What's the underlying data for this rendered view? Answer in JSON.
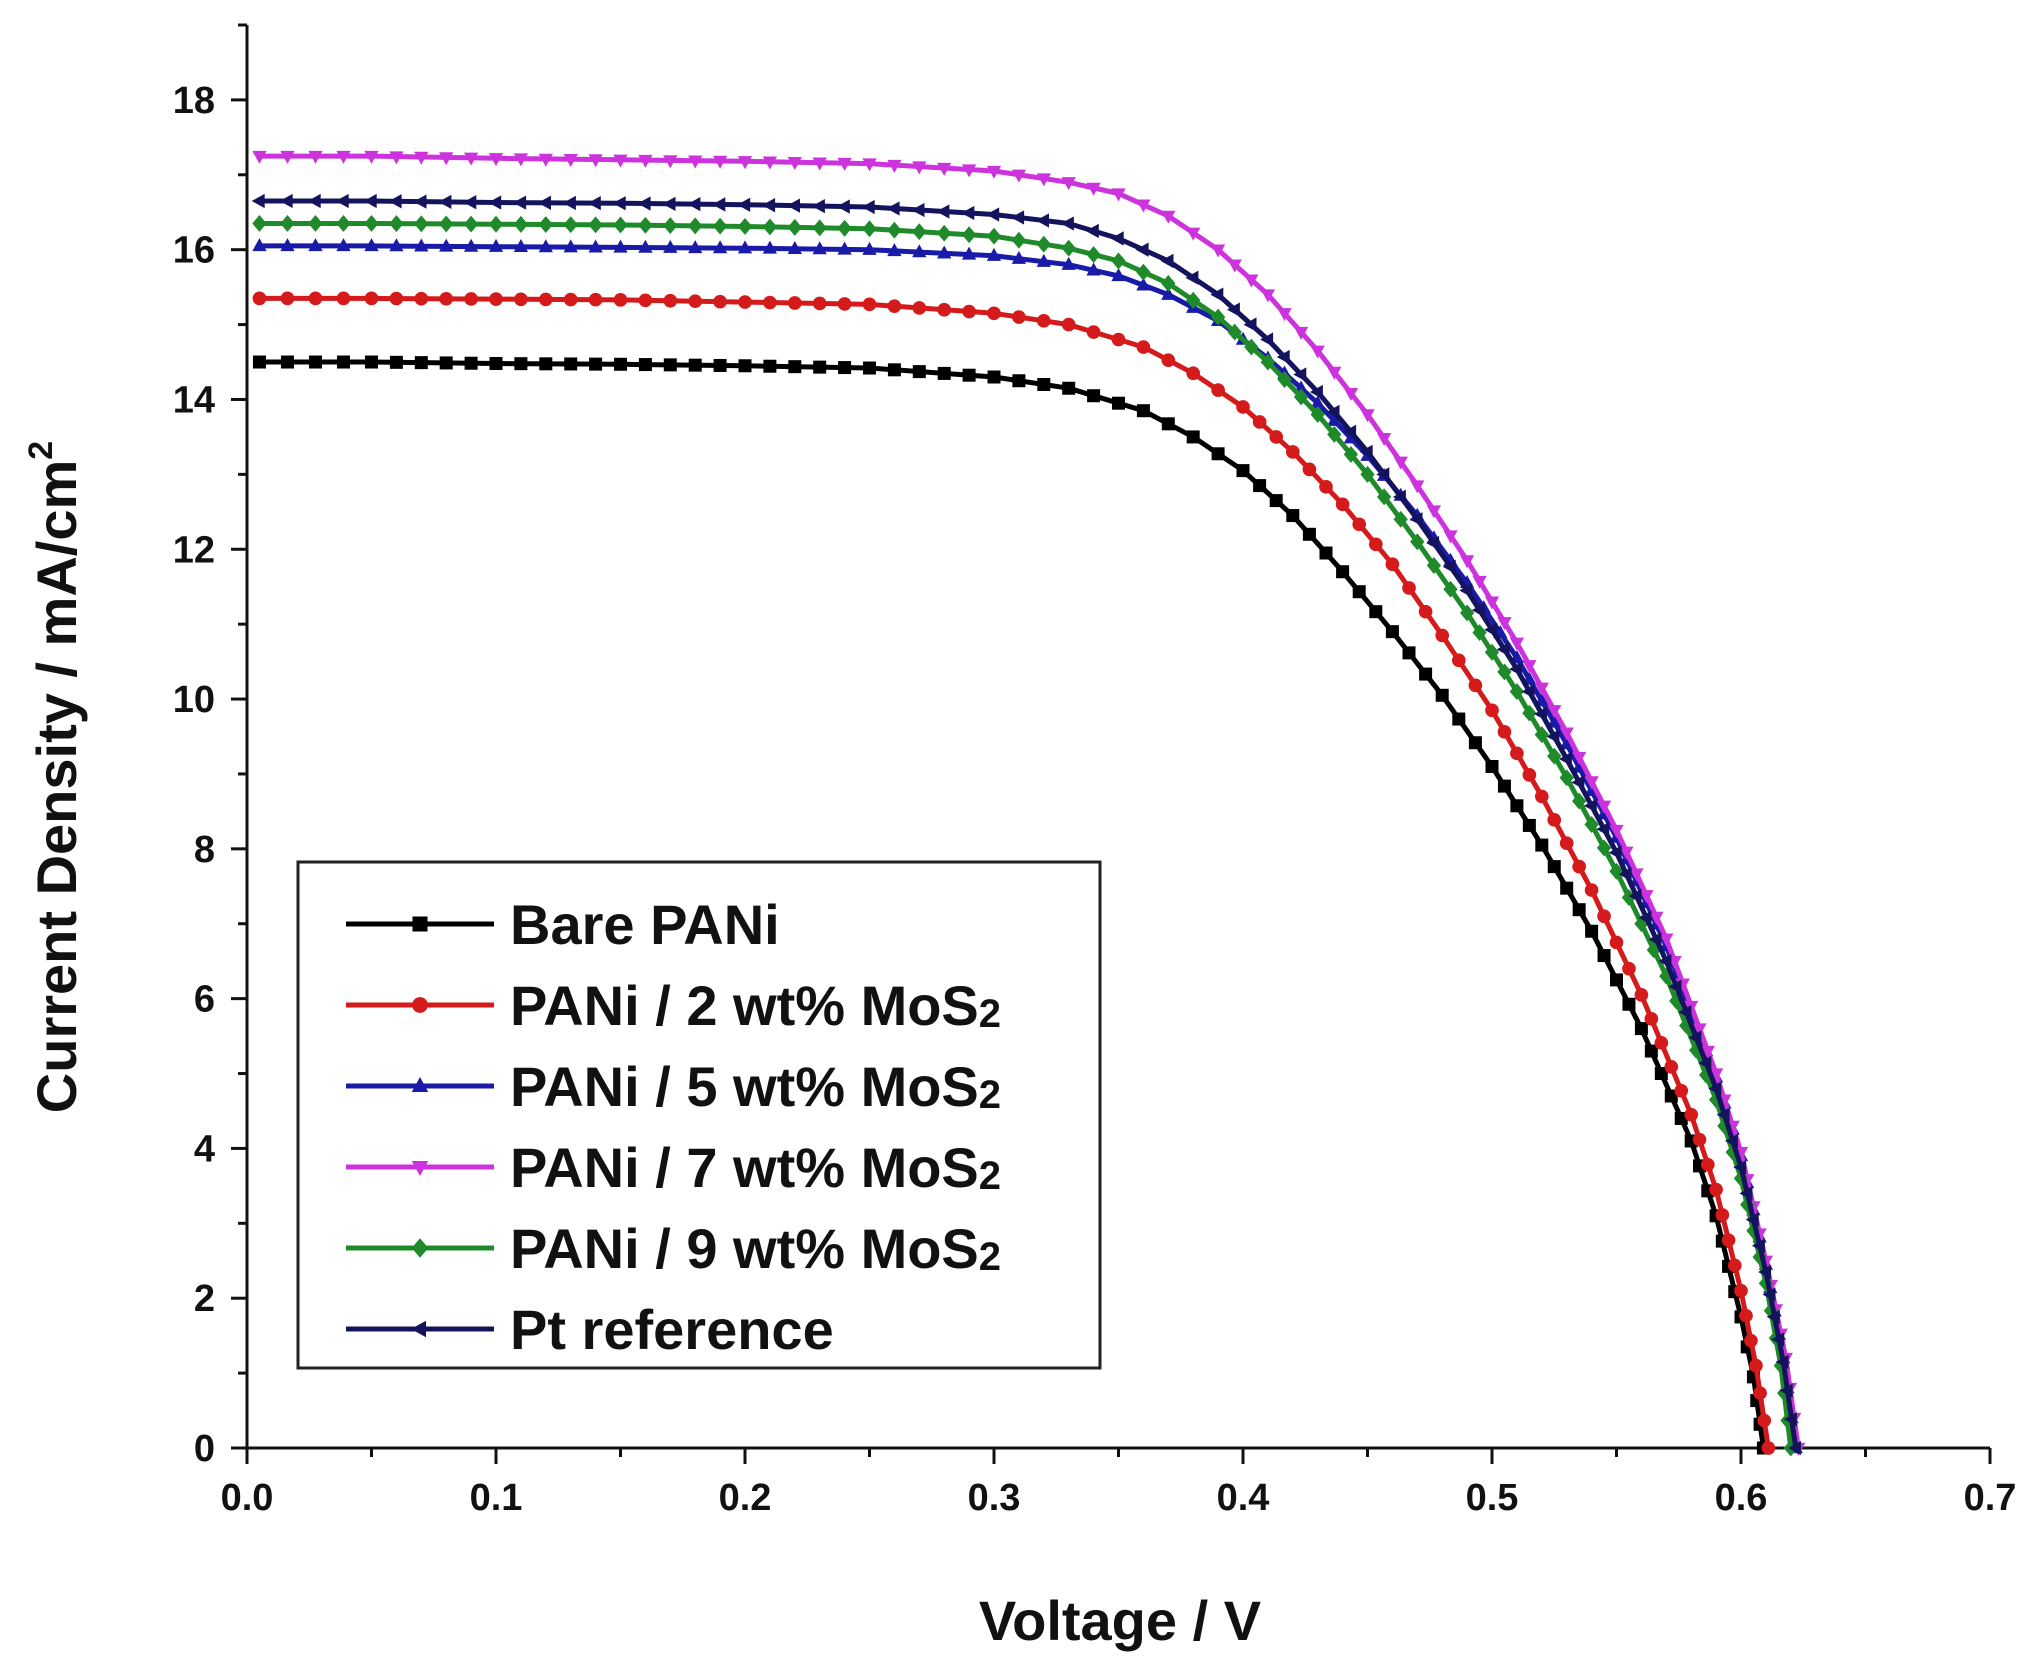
{
  "chart_data": {
    "type": "line",
    "title": "",
    "xlabel": "Voltage / V",
    "ylabel": "Current Density / mA/cm",
    "ylabel_superscript": "2",
    "xlim": [
      0.0,
      0.7
    ],
    "ylim": [
      0,
      19
    ],
    "x_ticks": [
      0.0,
      0.1,
      0.2,
      0.3,
      0.4,
      0.5,
      0.6,
      0.7
    ],
    "x_tick_labels": [
      "0.0",
      "0.1",
      "0.2",
      "0.3",
      "0.4",
      "0.5",
      "0.6",
      "0.7"
    ],
    "y_ticks": [
      0,
      2,
      4,
      6,
      8,
      10,
      12,
      14,
      16,
      18
    ],
    "y_tick_labels": [
      "0",
      "2",
      "4",
      "6",
      "8",
      "10",
      "12",
      "14",
      "16",
      "18"
    ],
    "grid": false,
    "legend_position": "bottom-left",
    "series": [
      {
        "name": "Bare PANi",
        "label_main": "Bare PANi",
        "label_sub": "",
        "color": "#000000",
        "marker": "square",
        "points": [
          [
            0.005,
            14.5
          ],
          [
            0.05,
            14.5
          ],
          [
            0.1,
            14.48
          ],
          [
            0.15,
            14.47
          ],
          [
            0.2,
            14.45
          ],
          [
            0.25,
            14.42
          ],
          [
            0.3,
            14.3
          ],
          [
            0.33,
            14.15
          ],
          [
            0.36,
            13.85
          ],
          [
            0.38,
            13.5
          ],
          [
            0.4,
            13.05
          ],
          [
            0.42,
            12.45
          ],
          [
            0.44,
            11.7
          ],
          [
            0.46,
            10.9
          ],
          [
            0.48,
            10.05
          ],
          [
            0.5,
            9.1
          ],
          [
            0.52,
            8.05
          ],
          [
            0.54,
            6.9
          ],
          [
            0.56,
            5.6
          ],
          [
            0.58,
            4.1
          ],
          [
            0.59,
            3.1
          ],
          [
            0.6,
            1.75
          ],
          [
            0.605,
            0.95
          ],
          [
            0.609,
            0.0
          ]
        ]
      },
      {
        "name": "PANi / 2 wt% MoS2",
        "label_main": "PANi / 2 wt% MoS",
        "label_sub": "2",
        "color": "#d41a1a",
        "marker": "circle",
        "points": [
          [
            0.005,
            15.35
          ],
          [
            0.05,
            15.35
          ],
          [
            0.1,
            15.34
          ],
          [
            0.15,
            15.33
          ],
          [
            0.2,
            15.3
          ],
          [
            0.25,
            15.27
          ],
          [
            0.3,
            15.15
          ],
          [
            0.33,
            15.0
          ],
          [
            0.36,
            14.7
          ],
          [
            0.38,
            14.35
          ],
          [
            0.4,
            13.9
          ],
          [
            0.42,
            13.3
          ],
          [
            0.44,
            12.6
          ],
          [
            0.46,
            11.8
          ],
          [
            0.48,
            10.85
          ],
          [
            0.5,
            9.85
          ],
          [
            0.52,
            8.7
          ],
          [
            0.54,
            7.45
          ],
          [
            0.56,
            6.05
          ],
          [
            0.58,
            4.45
          ],
          [
            0.59,
            3.45
          ],
          [
            0.6,
            2.1
          ],
          [
            0.606,
            1.1
          ],
          [
            0.611,
            0.0
          ]
        ]
      },
      {
        "name": "PANi / 5 wt% MoS2",
        "label_main": "PANi / 5 wt% MoS",
        "label_sub": "2",
        "color": "#1a1aa8",
        "marker": "triangle-up",
        "points": [
          [
            0.005,
            16.05
          ],
          [
            0.05,
            16.05
          ],
          [
            0.1,
            16.04
          ],
          [
            0.15,
            16.03
          ],
          [
            0.2,
            16.02
          ],
          [
            0.25,
            16.0
          ],
          [
            0.3,
            15.92
          ],
          [
            0.33,
            15.8
          ],
          [
            0.35,
            15.65
          ],
          [
            0.37,
            15.4
          ],
          [
            0.39,
            15.05
          ],
          [
            0.41,
            14.55
          ],
          [
            0.43,
            13.95
          ],
          [
            0.45,
            13.25
          ],
          [
            0.47,
            12.45
          ],
          [
            0.49,
            11.55
          ],
          [
            0.51,
            10.55
          ],
          [
            0.53,
            9.4
          ],
          [
            0.55,
            8.15
          ],
          [
            0.57,
            6.7
          ],
          [
            0.59,
            4.95
          ],
          [
            0.6,
            3.9
          ],
          [
            0.61,
            2.45
          ],
          [
            0.617,
            1.2
          ],
          [
            0.622,
            0.0
          ]
        ]
      },
      {
        "name": "PANi / 7 wt% MoS2",
        "label_main": "PANi / 7 wt% MoS",
        "label_sub": "2",
        "color": "#cc33dd",
        "marker": "triangle-down",
        "points": [
          [
            0.005,
            17.25
          ],
          [
            0.05,
            17.25
          ],
          [
            0.1,
            17.22
          ],
          [
            0.15,
            17.2
          ],
          [
            0.2,
            17.18
          ],
          [
            0.25,
            17.15
          ],
          [
            0.3,
            17.05
          ],
          [
            0.33,
            16.9
          ],
          [
            0.35,
            16.75
          ],
          [
            0.37,
            16.45
          ],
          [
            0.39,
            16.0
          ],
          [
            0.41,
            15.4
          ],
          [
            0.43,
            14.65
          ],
          [
            0.45,
            13.8
          ],
          [
            0.47,
            12.85
          ],
          [
            0.49,
            11.85
          ],
          [
            0.51,
            10.75
          ],
          [
            0.53,
            9.55
          ],
          [
            0.55,
            8.25
          ],
          [
            0.57,
            6.8
          ],
          [
            0.59,
            5.0
          ],
          [
            0.6,
            3.95
          ],
          [
            0.61,
            2.5
          ],
          [
            0.618,
            1.2
          ],
          [
            0.623,
            0.0
          ]
        ]
      },
      {
        "name": "PANi / 9 wt% MoS2",
        "label_main": "PANi / 9 wt% MoS",
        "label_sub": "2",
        "color": "#1f8a2a",
        "marker": "diamond",
        "points": [
          [
            0.005,
            16.35
          ],
          [
            0.05,
            16.35
          ],
          [
            0.1,
            16.34
          ],
          [
            0.15,
            16.33
          ],
          [
            0.2,
            16.31
          ],
          [
            0.25,
            16.28
          ],
          [
            0.3,
            16.18
          ],
          [
            0.33,
            16.02
          ],
          [
            0.35,
            15.85
          ],
          [
            0.37,
            15.55
          ],
          [
            0.39,
            15.1
          ],
          [
            0.41,
            14.5
          ],
          [
            0.43,
            13.8
          ],
          [
            0.45,
            13.0
          ],
          [
            0.47,
            12.1
          ],
          [
            0.49,
            11.15
          ],
          [
            0.51,
            10.1
          ],
          [
            0.53,
            8.95
          ],
          [
            0.55,
            7.7
          ],
          [
            0.57,
            6.3
          ],
          [
            0.59,
            4.65
          ],
          [
            0.6,
            3.6
          ],
          [
            0.61,
            2.2
          ],
          [
            0.616,
            1.1
          ],
          [
            0.62,
            0.0
          ]
        ]
      },
      {
        "name": "Pt reference",
        "label_main": "Pt reference",
        "label_sub": "",
        "color": "#14145e",
        "marker": "triangle-left",
        "points": [
          [
            0.005,
            16.65
          ],
          [
            0.05,
            16.65
          ],
          [
            0.1,
            16.63
          ],
          [
            0.15,
            16.62
          ],
          [
            0.2,
            16.6
          ],
          [
            0.25,
            16.57
          ],
          [
            0.3,
            16.47
          ],
          [
            0.33,
            16.35
          ],
          [
            0.35,
            16.15
          ],
          [
            0.37,
            15.85
          ],
          [
            0.39,
            15.4
          ],
          [
            0.41,
            14.8
          ],
          [
            0.43,
            14.1
          ],
          [
            0.45,
            13.3
          ],
          [
            0.47,
            12.4
          ],
          [
            0.49,
            11.45
          ],
          [
            0.51,
            10.4
          ],
          [
            0.53,
            9.2
          ],
          [
            0.55,
            7.95
          ],
          [
            0.57,
            6.5
          ],
          [
            0.59,
            4.8
          ],
          [
            0.6,
            3.75
          ],
          [
            0.61,
            2.35
          ],
          [
            0.617,
            1.15
          ],
          [
            0.622,
            0.0
          ]
        ]
      }
    ]
  }
}
